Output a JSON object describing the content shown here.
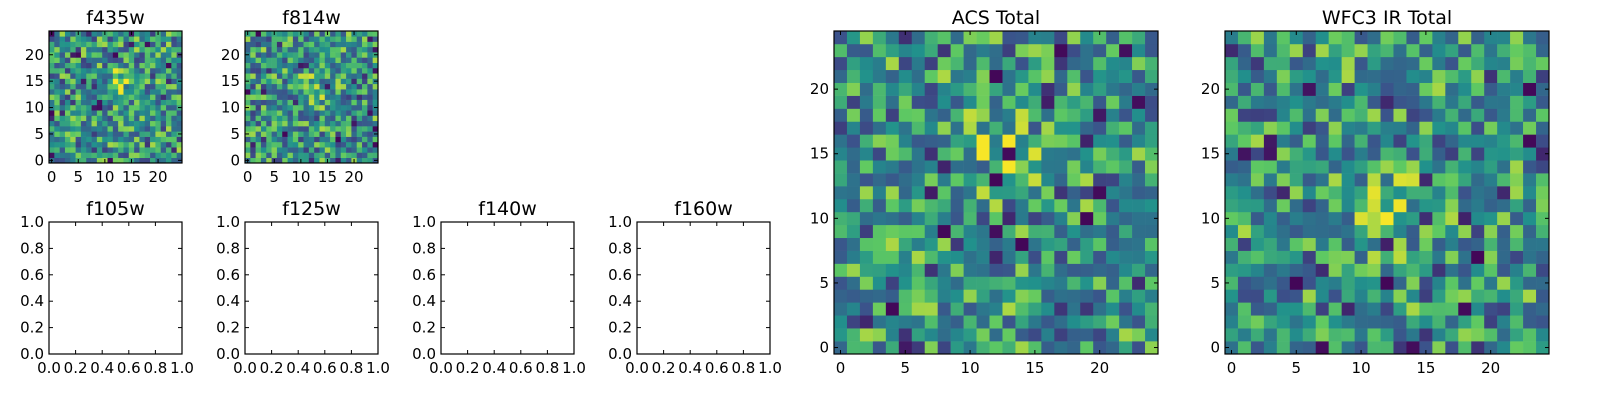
{
  "figure": {
    "background": "#ffffff",
    "colormap": "viridis",
    "colormap_stops": [
      "#440154",
      "#3b528b",
      "#21918c",
      "#5ec962",
      "#fde725"
    ]
  },
  "chart_data": [
    {
      "type": "heatmap",
      "title": "f435w",
      "grid": false,
      "xlim": [
        -0.5,
        24.5
      ],
      "ylim": [
        -0.5,
        24.5
      ],
      "xticks": [
        "0",
        "5",
        "10",
        "15",
        "20"
      ],
      "yticks": [
        "0",
        "5",
        "10",
        "15",
        "20"
      ],
      "shape": [
        25,
        25
      ],
      "seed": 11,
      "peak": [
        13,
        15
      ],
      "noise_floor": "uniform noise with a faint central source"
    },
    {
      "type": "heatmap",
      "title": "f814w",
      "grid": false,
      "xlim": [
        -0.5,
        24.5
      ],
      "ylim": [
        -0.5,
        24.5
      ],
      "xticks": [
        "0",
        "5",
        "10",
        "15",
        "20"
      ],
      "yticks": [
        "0",
        "5",
        "10",
        "15",
        "20"
      ],
      "shape": [
        25,
        25
      ],
      "seed": 29,
      "peak": [
        13,
        14
      ],
      "noise_floor": "uniform noise with a central source"
    },
    {
      "type": "empty",
      "title": "f105w",
      "xlim": [
        0.0,
        1.0
      ],
      "ylim": [
        0.0,
        1.0
      ],
      "xticks": [
        "0.0",
        "0.2",
        "0.4",
        "0.6",
        "0.8",
        "1.0"
      ],
      "yticks": [
        "0.0",
        "0.2",
        "0.4",
        "0.6",
        "0.8",
        "1.0"
      ]
    },
    {
      "type": "empty",
      "title": "f125w",
      "xlim": [
        0.0,
        1.0
      ],
      "ylim": [
        0.0,
        1.0
      ],
      "xticks": [
        "0.0",
        "0.2",
        "0.4",
        "0.6",
        "0.8",
        "1.0"
      ],
      "yticks": [
        "0.0",
        "0.2",
        "0.4",
        "0.6",
        "0.8",
        "1.0"
      ]
    },
    {
      "type": "empty",
      "title": "f140w",
      "xlim": [
        0.0,
        1.0
      ],
      "ylim": [
        0.0,
        1.0
      ],
      "xticks": [
        "0.0",
        "0.2",
        "0.4",
        "0.6",
        "0.8",
        "1.0"
      ],
      "yticks": [
        "0.0",
        "0.2",
        "0.4",
        "0.6",
        "0.8",
        "1.0"
      ]
    },
    {
      "type": "empty",
      "title": "f160w",
      "xlim": [
        0.0,
        1.0
      ],
      "ylim": [
        0.0,
        1.0
      ],
      "xticks": [
        "0.0",
        "0.2",
        "0.4",
        "0.6",
        "0.8",
        "1.0"
      ],
      "yticks": [
        "0.0",
        "0.2",
        "0.4",
        "0.6",
        "0.8",
        "1.0"
      ]
    },
    {
      "type": "heatmap",
      "title": "ACS Total",
      "grid": false,
      "xlim": [
        -0.5,
        24.5
      ],
      "ylim": [
        -0.5,
        24.5
      ],
      "xticks": [
        "0",
        "5",
        "10",
        "15",
        "20"
      ],
      "yticks": [
        "0",
        "5",
        "10",
        "15",
        "20"
      ],
      "shape": [
        25,
        25
      ],
      "seed": 47,
      "peak": [
        12,
        15
      ],
      "noise_floor": "noise with a bright central source"
    },
    {
      "type": "heatmap",
      "title": "WFC3 IR Total",
      "grid": false,
      "xlim": [
        -0.5,
        24.5
      ],
      "ylim": [
        -0.5,
        24.5
      ],
      "xticks": [
        "0",
        "5",
        "10",
        "15",
        "20"
      ],
      "yticks": [
        "0",
        "5",
        "10",
        "15",
        "20"
      ],
      "shape": [
        25,
        25
      ],
      "seed": 83,
      "peak": [
        12,
        11
      ],
      "noise_floor": "noise with a bright central source"
    }
  ]
}
